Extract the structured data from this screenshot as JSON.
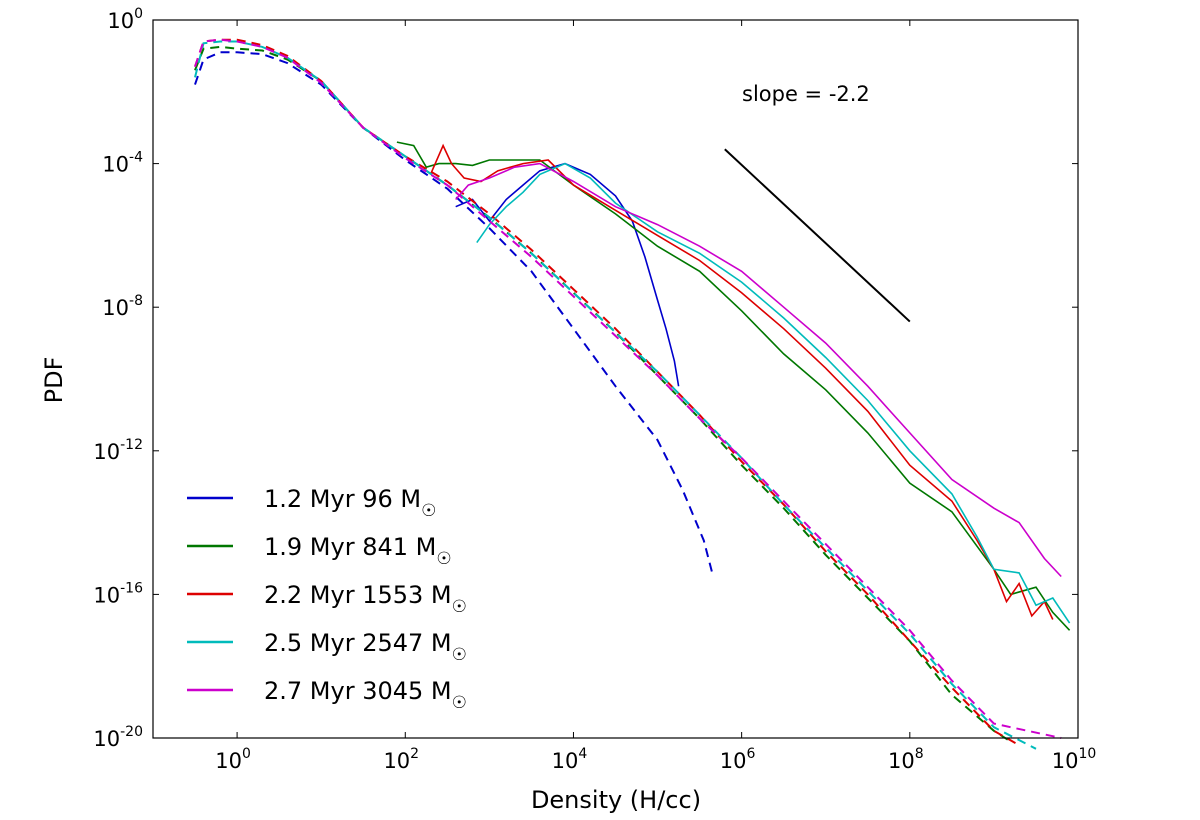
{
  "chart_data": {
    "type": "line",
    "xlabel": "Density (H/cc)",
    "ylabel": "PDF",
    "x_scale": "log",
    "y_scale": "log",
    "xlim_log10": [
      -1,
      10
    ],
    "ylim_log10": [
      -20,
      0
    ],
    "x_ticks": [
      {
        "base": "10",
        "exp": "0",
        "v": 0
      },
      {
        "base": "10",
        "exp": "2",
        "v": 2
      },
      {
        "base": "10",
        "exp": "4",
        "v": 4
      },
      {
        "base": "10",
        "exp": "6",
        "v": 6
      },
      {
        "base": "10",
        "exp": "8",
        "v": 8
      },
      {
        "base": "10",
        "exp": "10",
        "v": 10
      }
    ],
    "y_ticks": [
      {
        "base": "10",
        "exp": "0",
        "v": 0
      },
      {
        "base": "10",
        "exp": "-4",
        "v": -4
      },
      {
        "base": "10",
        "exp": "-8",
        "v": -8
      },
      {
        "base": "10",
        "exp": "-12",
        "v": -12
      },
      {
        "base": "10",
        "exp": "-16",
        "v": -16
      },
      {
        "base": "10",
        "exp": "-20",
        "v": -20
      }
    ],
    "legend_position": "lower-left",
    "annotation": {
      "text": "slope = -2.2",
      "line_log10": [
        [
          5.8,
          -3.6
        ],
        [
          8.0,
          -8.4
        ]
      ]
    },
    "series": [
      {
        "name": "1.2 Myr 96",
        "name_prefix": "1.2 Myr 96 M",
        "unit": "☉",
        "color": "#0000cc",
        "solid": [
          [
            2.6,
            -5.2
          ],
          [
            2.8,
            -5.0
          ],
          [
            3.0,
            -5.6
          ],
          [
            3.2,
            -5.0
          ],
          [
            3.4,
            -4.6
          ],
          [
            3.6,
            -4.2
          ],
          [
            3.9,
            -4.0
          ],
          [
            4.2,
            -4.3
          ],
          [
            4.5,
            -4.9
          ],
          [
            4.7,
            -5.6
          ],
          [
            4.85,
            -6.6
          ],
          [
            5.0,
            -7.8
          ],
          [
            5.1,
            -8.6
          ],
          [
            5.2,
            -9.5
          ],
          [
            5.25,
            -10.2
          ]
        ],
        "dashed": [
          [
            -0.5,
            -1.8
          ],
          [
            -0.4,
            -1.1
          ],
          [
            -0.2,
            -0.9
          ],
          [
            0,
            -0.9
          ],
          [
            0.3,
            -0.95
          ],
          [
            0.6,
            -1.2
          ],
          [
            1.0,
            -1.8
          ],
          [
            1.5,
            -3.0
          ],
          [
            2.0,
            -3.9
          ],
          [
            2.5,
            -4.7
          ],
          [
            3.0,
            -5.8
          ],
          [
            3.5,
            -7.0
          ],
          [
            4.0,
            -8.6
          ],
          [
            4.5,
            -10.2
          ],
          [
            5.0,
            -11.7
          ],
          [
            5.3,
            -13.1
          ],
          [
            5.55,
            -14.5
          ],
          [
            5.65,
            -15.4
          ]
        ]
      },
      {
        "name": "1.9 Myr 841",
        "name_prefix": "1.9 Myr 841 M",
        "unit": "☉",
        "color": "#007700",
        "solid": [
          [
            1.9,
            -3.4
          ],
          [
            2.1,
            -3.5
          ],
          [
            2.25,
            -4.1
          ],
          [
            2.4,
            -4.0
          ],
          [
            2.6,
            -4.0
          ],
          [
            2.8,
            -4.05
          ],
          [
            3.0,
            -3.9
          ],
          [
            3.3,
            -3.9
          ],
          [
            3.6,
            -3.9
          ],
          [
            4.0,
            -4.6
          ],
          [
            4.5,
            -5.4
          ],
          [
            5.0,
            -6.3
          ],
          [
            5.5,
            -7.0
          ],
          [
            6.0,
            -8.1
          ],
          [
            6.5,
            -9.3
          ],
          [
            7.0,
            -10.3
          ],
          [
            7.5,
            -11.5
          ],
          [
            8.0,
            -12.9
          ],
          [
            8.5,
            -13.7
          ],
          [
            9.0,
            -15.3
          ],
          [
            9.2,
            -16.0
          ],
          [
            9.5,
            -15.8
          ],
          [
            9.7,
            -16.5
          ],
          [
            9.9,
            -17.0
          ]
        ],
        "dashed": [
          [
            -0.5,
            -1.4
          ],
          [
            -0.4,
            -0.8
          ],
          [
            -0.2,
            -0.75
          ],
          [
            0,
            -0.8
          ],
          [
            0.3,
            -0.85
          ],
          [
            0.6,
            -1.1
          ],
          [
            1.0,
            -1.7
          ],
          [
            1.5,
            -3.0
          ],
          [
            2.0,
            -3.8
          ],
          [
            2.5,
            -4.6
          ],
          [
            3.0,
            -5.5
          ],
          [
            3.5,
            -6.5
          ],
          [
            4.0,
            -7.6
          ],
          [
            4.5,
            -8.7
          ],
          [
            5.0,
            -9.9
          ],
          [
            5.5,
            -11.1
          ],
          [
            6.0,
            -12.4
          ],
          [
            6.5,
            -13.6
          ],
          [
            7.0,
            -14.9
          ],
          [
            7.5,
            -16.1
          ],
          [
            8.0,
            -17.3
          ],
          [
            8.5,
            -18.8
          ],
          [
            9.0,
            -19.8
          ],
          [
            9.2,
            -20.1
          ]
        ]
      },
      {
        "name": "2.2 Myr 1553",
        "name_prefix": "2.2 Myr 1553 M",
        "unit": "☉",
        "color": "#dd0000",
        "solid": [
          [
            2.3,
            -4.3
          ],
          [
            2.45,
            -3.5
          ],
          [
            2.55,
            -4.0
          ],
          [
            2.7,
            -4.4
          ],
          [
            2.9,
            -4.5
          ],
          [
            3.1,
            -4.2
          ],
          [
            3.4,
            -4.0
          ],
          [
            3.7,
            -3.9
          ],
          [
            4.0,
            -4.6
          ],
          [
            4.5,
            -5.3
          ],
          [
            5.0,
            -6.0
          ],
          [
            5.5,
            -6.7
          ],
          [
            6.0,
            -7.6
          ],
          [
            6.5,
            -8.6
          ],
          [
            7.0,
            -9.7
          ],
          [
            7.5,
            -10.9
          ],
          [
            8.0,
            -12.4
          ],
          [
            8.5,
            -13.4
          ],
          [
            8.8,
            -14.5
          ],
          [
            9.0,
            -15.3
          ],
          [
            9.15,
            -16.2
          ],
          [
            9.3,
            -15.7
          ],
          [
            9.45,
            -16.6
          ],
          [
            9.6,
            -16.2
          ],
          [
            9.7,
            -16.7
          ]
        ],
        "dashed": [
          [
            -0.5,
            -1.3
          ],
          [
            -0.4,
            -0.6
          ],
          [
            -0.2,
            -0.55
          ],
          [
            0,
            -0.55
          ],
          [
            0.3,
            -0.7
          ],
          [
            0.6,
            -1.0
          ],
          [
            1.0,
            -1.7
          ],
          [
            1.5,
            -3.0
          ],
          [
            2.0,
            -3.8
          ],
          [
            2.5,
            -4.5
          ],
          [
            3.0,
            -5.4
          ],
          [
            3.5,
            -6.4
          ],
          [
            4.0,
            -7.5
          ],
          [
            4.5,
            -8.6
          ],
          [
            5.0,
            -9.8
          ],
          [
            5.5,
            -11.0
          ],
          [
            6.0,
            -12.3
          ],
          [
            6.5,
            -13.5
          ],
          [
            7.0,
            -14.8
          ],
          [
            7.5,
            -16.0
          ],
          [
            8.0,
            -17.3
          ],
          [
            8.5,
            -18.6
          ],
          [
            9.0,
            -19.8
          ],
          [
            9.3,
            -20.2
          ]
        ]
      },
      {
        "name": "2.5 Myr 2547",
        "name_prefix": "2.5 Myr 2547 M",
        "unit": "☉",
        "color": "#00bbbb",
        "solid": [
          [
            2.85,
            -6.2
          ],
          [
            3.0,
            -5.7
          ],
          [
            3.2,
            -5.2
          ],
          [
            3.4,
            -4.8
          ],
          [
            3.6,
            -4.3
          ],
          [
            3.9,
            -4.0
          ],
          [
            4.2,
            -4.4
          ],
          [
            4.5,
            -5.1
          ],
          [
            5.0,
            -5.9
          ],
          [
            5.5,
            -6.5
          ],
          [
            6.0,
            -7.3
          ],
          [
            6.5,
            -8.3
          ],
          [
            7.0,
            -9.4
          ],
          [
            7.5,
            -10.6
          ],
          [
            8.0,
            -12.0
          ],
          [
            8.5,
            -13.2
          ],
          [
            8.8,
            -14.4
          ],
          [
            9.0,
            -15.3
          ],
          [
            9.3,
            -15.4
          ],
          [
            9.5,
            -16.3
          ],
          [
            9.7,
            -16.1
          ],
          [
            9.9,
            -16.8
          ]
        ],
        "dashed": [
          [
            -0.5,
            -1.6
          ],
          [
            -0.4,
            -0.65
          ],
          [
            -0.2,
            -0.6
          ],
          [
            0,
            -0.6
          ],
          [
            0.3,
            -0.75
          ],
          [
            0.6,
            -1.05
          ],
          [
            1.0,
            -1.7
          ],
          [
            1.5,
            -3.0
          ],
          [
            2.0,
            -3.8
          ],
          [
            2.5,
            -4.6
          ],
          [
            3.0,
            -5.5
          ],
          [
            3.5,
            -6.5
          ],
          [
            4.0,
            -7.6
          ],
          [
            4.5,
            -8.7
          ],
          [
            5.0,
            -9.8
          ],
          [
            5.5,
            -11.0
          ],
          [
            6.0,
            -12.2
          ],
          [
            6.5,
            -13.5
          ],
          [
            7.0,
            -14.7
          ],
          [
            7.5,
            -15.9
          ],
          [
            8.0,
            -17.1
          ],
          [
            8.5,
            -18.5
          ],
          [
            9.0,
            -19.7
          ],
          [
            9.5,
            -20.3
          ]
        ]
      },
      {
        "name": "2.7 Myr 3045",
        "name_prefix": "2.7 Myr 3045 M",
        "unit": "☉",
        "color": "#cc00cc",
        "solid": [
          [
            2.6,
            -5.0
          ],
          [
            2.75,
            -4.6
          ],
          [
            3.0,
            -4.4
          ],
          [
            3.3,
            -4.1
          ],
          [
            3.6,
            -4.0
          ],
          [
            4.0,
            -4.5
          ],
          [
            4.5,
            -5.2
          ],
          [
            5.0,
            -5.7
          ],
          [
            5.5,
            -6.3
          ],
          [
            6.0,
            -7.0
          ],
          [
            6.5,
            -8.0
          ],
          [
            7.0,
            -9.0
          ],
          [
            7.5,
            -10.2
          ],
          [
            8.0,
            -11.5
          ],
          [
            8.5,
            -12.8
          ],
          [
            9.0,
            -13.6
          ],
          [
            9.3,
            -14.0
          ],
          [
            9.6,
            -15.0
          ],
          [
            9.8,
            -15.5
          ]
        ],
        "dashed": [
          [
            -0.5,
            -1.3
          ],
          [
            -0.4,
            -0.6
          ],
          [
            -0.2,
            -0.55
          ],
          [
            0,
            -0.6
          ],
          [
            0.3,
            -0.75
          ],
          [
            0.6,
            -1.05
          ],
          [
            1.0,
            -1.75
          ],
          [
            1.5,
            -3.0
          ],
          [
            2.0,
            -3.85
          ],
          [
            2.5,
            -4.6
          ],
          [
            3.0,
            -5.6
          ],
          [
            3.5,
            -6.6
          ],
          [
            4.0,
            -7.7
          ],
          [
            4.5,
            -8.8
          ],
          [
            5.0,
            -9.9
          ],
          [
            5.5,
            -11.1
          ],
          [
            6.0,
            -12.2
          ],
          [
            6.5,
            -13.4
          ],
          [
            7.0,
            -14.6
          ],
          [
            7.5,
            -15.8
          ],
          [
            8.0,
            -17.0
          ],
          [
            8.5,
            -18.4
          ],
          [
            9.0,
            -19.6
          ],
          [
            9.8,
            -20.0
          ]
        ]
      }
    ]
  }
}
